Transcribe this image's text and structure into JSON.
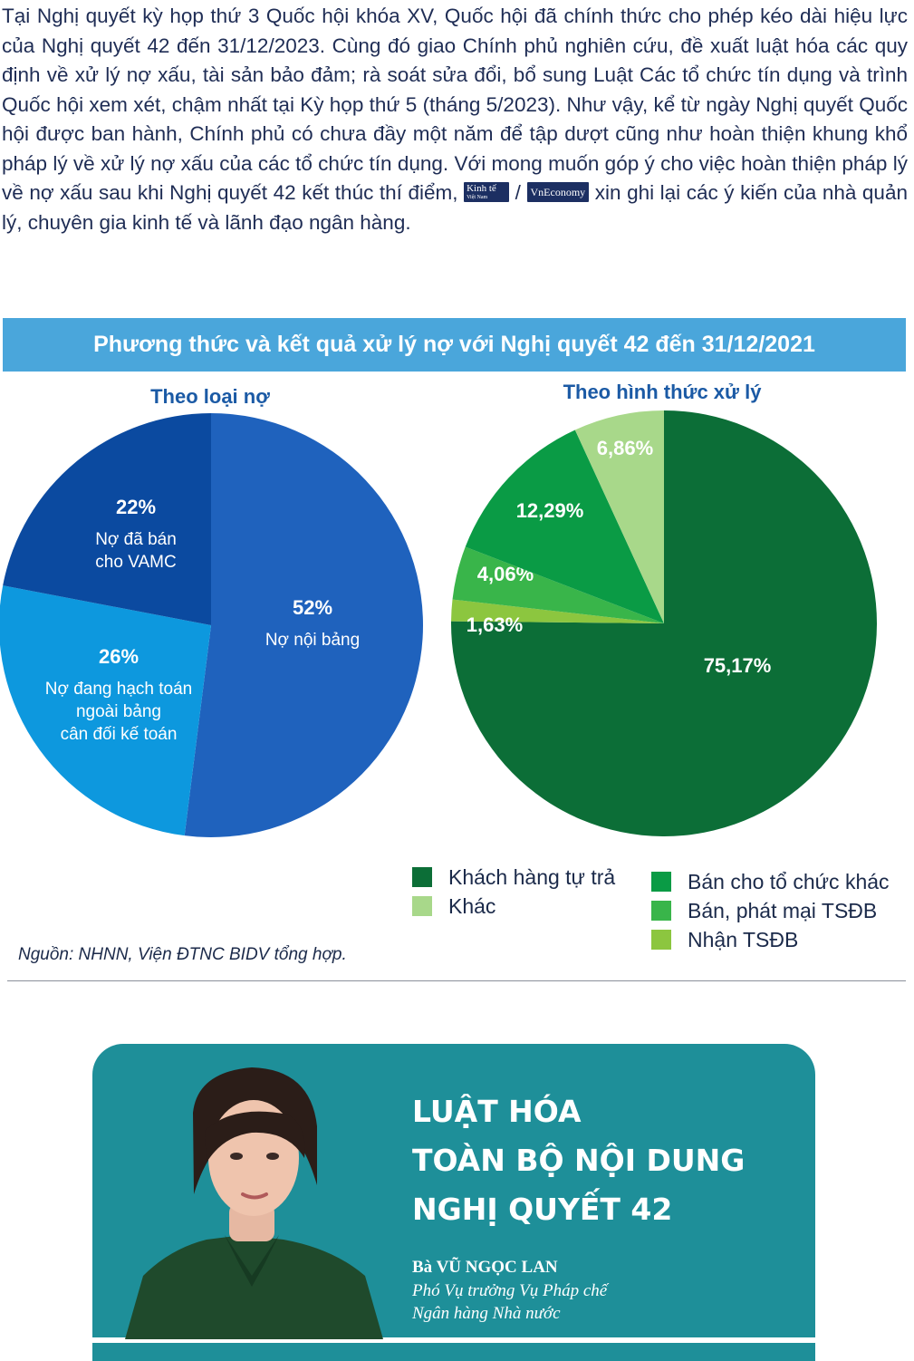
{
  "intro": {
    "text_before": "Tại Nghị quyết kỳ họp thứ 3 Quốc hội khóa XV, Quốc hội đã chính thức cho phép kéo dài hiệu lực của Nghị quyết 42 đến 31/12/2023. Cùng đó giao Chính phủ nghiên cứu, đề xuất luật hóa các quy định về xử lý nợ xấu, tài sản bảo đảm; rà soát sửa đổi, bổ sung Luật Các tổ chức tín dụng và trình Quốc hội xem xét, chậm nhất tại Kỳ họp thứ 5 (tháng 5/2023). Như vậy, kể từ ngày Nghị quyết Quốc hội được ban hành, Chính phủ có chưa đầy một năm để tập dượt cũng như hoàn thiện khung khổ pháp lý về xử lý nợ xấu của các tổ chức tín dụng. Với mong muốn góp ý cho việc hoàn thiện pháp lý về nợ xấu sau khi Nghị quyết 42 kết thúc thí điểm,",
    "logo_kt": "Kinh tế",
    "logo_kt_sub": "Việt Nam",
    "separator": "/",
    "logo_vn": "VnEconomy",
    "text_after": "xin ghi lại các ý kiến của nhà quản lý, chuyên gia kinh tế và lãnh đạo ngân hàng."
  },
  "chart_title": "Phương thức và kết quả xử lý nợ với Nghị quyết 42 đến 31/12/2021",
  "chart_data": [
    {
      "type": "pie",
      "title": "Theo loại nợ",
      "slices": [
        {
          "pct_label": "52%",
          "label": "Nợ nội bảng",
          "value": 52,
          "color": "#1f62bd"
        },
        {
          "pct_label": "26%",
          "label": "Nợ đang hạch toán ngoài bảng cân đối kế toán",
          "label_lines": [
            "Nợ đang hạch toán",
            "ngoài bảng",
            "cân đối kế toán"
          ],
          "value": 26,
          "color": "#0d98de"
        },
        {
          "pct_label": "22%",
          "label": "Nợ đã bán cho VAMC",
          "label_lines": [
            "Nợ đã bán",
            "cho VAMC"
          ],
          "value": 22,
          "color": "#0b4aa0"
        }
      ]
    },
    {
      "type": "pie",
      "title": "Theo hình thức xử lý",
      "slices": [
        {
          "pct_label": "75,17%",
          "label": "Khách hàng tự trả",
          "value": 75.17,
          "color": "#0c6e37"
        },
        {
          "pct_label": "1,63%",
          "label": "Nhận TSĐB",
          "value": 1.63,
          "color": "#8cc63f"
        },
        {
          "pct_label": "4,06%",
          "label": "Bán, phát mại TSĐB",
          "value": 4.06,
          "color": "#39b54a"
        },
        {
          "pct_label": "12,29%",
          "label": "Bán cho tổ chức khác",
          "value": 12.29,
          "color": "#0a9b45"
        },
        {
          "pct_label": "6,86%",
          "label": "Khác",
          "value": 6.86,
          "color": "#a8d88a"
        }
      ],
      "legend": [
        [
          "Khách hàng tự trả",
          "Khác"
        ],
        [
          "Bán cho tổ chức khác",
          "Bán, phát mại TSĐB",
          "Nhận TSĐB"
        ]
      ]
    }
  ],
  "source": "Nguồn: NHNN, Viện ĐTNC BIDV tổng hợp.",
  "quote": {
    "headline": [
      "LUẬT HÓA",
      "TOÀN BỘ NỘI DUNG",
      "NGHỊ QUYẾT 42"
    ],
    "name": "Bà VŨ NGỌC LAN",
    "role": [
      "Phó Vụ trưởng Vụ Pháp chế",
      "Ngân hàng Nhà nước"
    ]
  },
  "colors": {
    "text": "#1f2d55",
    "banner": "#4aa6db",
    "subtitle": "#1b5aa5",
    "card": "#1e8f99"
  }
}
